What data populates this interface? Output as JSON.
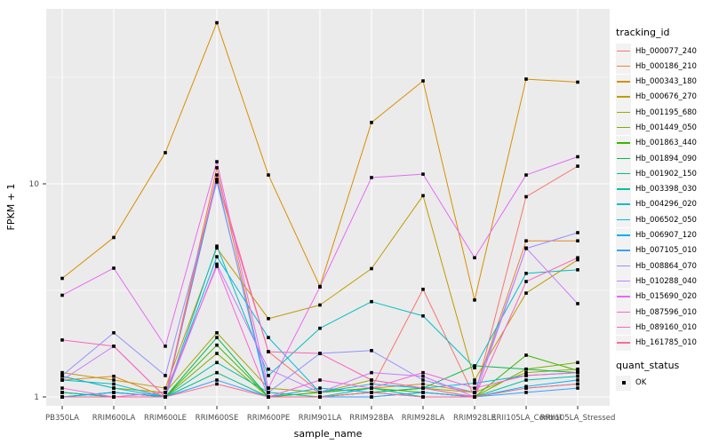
{
  "figure": {
    "background": "#ffffff",
    "panel_background": "#EBEBEB",
    "gridline_color": "#FFFFFF",
    "tick_label_color": "#4D4D4D",
    "axis_title_color": "#000000"
  },
  "chart_data": {
    "type": "line",
    "title": "",
    "xlabel": "sample_name",
    "ylabel": "FPKM + 1",
    "y_scale": "log10",
    "ylim": [
      1,
      66
    ],
    "y_major_ticks": [
      1,
      10
    ],
    "y_minor_ticks": [
      3.162,
      31.62
    ],
    "grid": true,
    "legend_position": "right",
    "legend_title": "tracking_id",
    "quant_legend": {
      "title": "quant_status",
      "items": [
        "OK"
      ]
    },
    "point_marker": {
      "shape": "square",
      "color": "#000000"
    },
    "categories": [
      "PB350LA",
      "RRIM600LA",
      "RRIM600LE",
      "RRIM600SE",
      "RRIM600PE",
      "RRIM901LA",
      "RRIM928BA",
      "RRIM928LA",
      "RRIM928LE",
      "RRII105LA_Control",
      "RRII105LA_Stressed"
    ],
    "series": [
      {
        "name": "Hb_000077_240",
        "color": "#F8766D",
        "values": [
          1.05,
          1.0,
          1.0,
          10.4,
          1.63,
          1.05,
          1.1,
          3.2,
          1.0,
          8.7,
          12.1
        ]
      },
      {
        "name": "Hb_000186_210",
        "color": "#EA8331",
        "values": [
          1.2,
          1.25,
          1.0,
          11.9,
          1.0,
          1.05,
          1.1,
          1.15,
          1.05,
          5.4,
          5.4
        ]
      },
      {
        "name": "Hb_000343_180",
        "color": "#D89000",
        "values": [
          3.6,
          5.6,
          14.0,
          57.0,
          11.0,
          3.3,
          19.4,
          30.4,
          2.85,
          31.0,
          30.0
        ]
      },
      {
        "name": "Hb_000676_270",
        "color": "#C09B00",
        "values": [
          1.3,
          1.2,
          1.1,
          5.0,
          2.33,
          2.7,
          4.0,
          8.8,
          1.2,
          3.07,
          4.4
        ]
      },
      {
        "name": "Hb_001195_680",
        "color": "#A3A500",
        "values": [
          1.25,
          1.1,
          1.05,
          2.0,
          1.1,
          1.05,
          1.2,
          1.1,
          1.05,
          1.3,
          1.35
        ]
      },
      {
        "name": "Hb_001449_050",
        "color": "#7CAE00",
        "values": [
          1.0,
          1.05,
          1.0,
          1.6,
          1.0,
          1.0,
          1.05,
          1.1,
          1.0,
          1.35,
          1.45
        ]
      },
      {
        "name": "Hb_001863_440",
        "color": "#39B600",
        "values": [
          1.05,
          1.0,
          1.0,
          1.75,
          1.0,
          1.05,
          1.1,
          1.05,
          1.0,
          1.57,
          1.33
        ]
      },
      {
        "name": "Hb_001894_090",
        "color": "#00BB4E",
        "values": [
          1.0,
          1.0,
          1.0,
          1.9,
          1.0,
          1.0,
          1.05,
          1.1,
          1.4,
          1.35,
          1.3
        ]
      },
      {
        "name": "Hb_001902_150",
        "color": "#00BF7D",
        "values": [
          1.0,
          1.05,
          1.0,
          1.3,
          1.0,
          1.0,
          1.0,
          1.05,
          1.0,
          1.1,
          1.15
        ]
      },
      {
        "name": "Hb_003398_030",
        "color": "#00C1A3",
        "values": [
          1.05,
          1.0,
          1.0,
          1.45,
          1.05,
          1.0,
          1.1,
          1.0,
          1.0,
          1.2,
          1.25
        ]
      },
      {
        "name": "Hb_004296_020",
        "color": "#00BFC4",
        "values": [
          1.2,
          1.15,
          1.0,
          5.1,
          1.26,
          2.1,
          2.8,
          2.4,
          1.37,
          3.8,
          3.95
        ]
      },
      {
        "name": "Hb_006502_050",
        "color": "#00BAE0",
        "values": [
          1.25,
          1.1,
          1.0,
          4.55,
          1.9,
          1.05,
          1.15,
          1.1,
          1.16,
          1.26,
          1.3
        ]
      },
      {
        "name": "Hb_006907_120",
        "color": "#00B0F6",
        "values": [
          1.0,
          1.05,
          1.0,
          10.5,
          1.0,
          1.1,
          1.05,
          1.0,
          1.0,
          1.12,
          1.2
        ]
      },
      {
        "name": "Hb_007105_010",
        "color": "#35A2FF",
        "values": [
          1.0,
          1.0,
          1.0,
          1.2,
          1.0,
          1.0,
          1.0,
          1.05,
          1.0,
          1.05,
          1.1
        ]
      },
      {
        "name": "Hb_008864_070",
        "color": "#9590FF",
        "values": [
          1.26,
          2.0,
          1.26,
          10.2,
          1.05,
          1.6,
          1.65,
          1.2,
          1.05,
          4.97,
          5.9
        ]
      },
      {
        "name": "Hb_010288_040",
        "color": "#C77CFF",
        "values": [
          1.2,
          1.73,
          1.0,
          4.2,
          1.35,
          1.05,
          1.3,
          1.25,
          1.0,
          5.0,
          2.74
        ]
      },
      {
        "name": "Hb_015690_020",
        "color": "#E76BF3",
        "values": [
          3.0,
          4.02,
          1.73,
          12.7,
          1.1,
          3.28,
          10.7,
          11.1,
          4.5,
          11.0,
          13.4
        ]
      },
      {
        "name": "Hb_087596_010",
        "color": "#FA62DB",
        "values": [
          1.1,
          1.0,
          1.05,
          4.1,
          1.0,
          1.2,
          1.1,
          1.3,
          1.1,
          1.26,
          1.3
        ]
      },
      {
        "name": "Hb_089160_010",
        "color": "#FF62BC",
        "values": [
          1.85,
          1.73,
          1.0,
          11.0,
          1.63,
          1.6,
          1.2,
          1.1,
          1.0,
          3.48,
          4.5
        ]
      },
      {
        "name": "Hb_161785_010",
        "color": "#FF6A98",
        "values": [
          1.0,
          1.0,
          1.0,
          1.15,
          1.0,
          1.0,
          1.05,
          1.0,
          1.0,
          1.1,
          1.15
        ]
      }
    ]
  }
}
